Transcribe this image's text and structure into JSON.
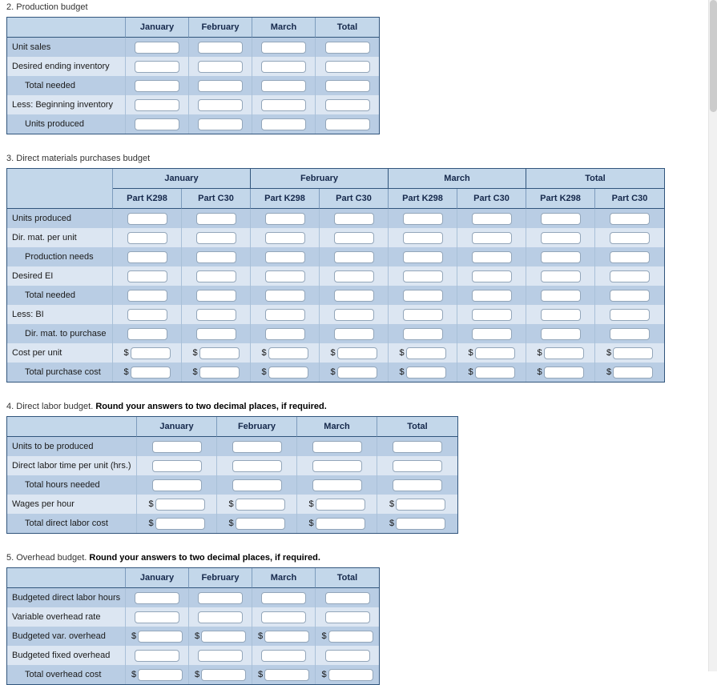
{
  "currency_symbol": "$",
  "sections": [
    {
      "key": "production-budget",
      "number": "2.",
      "title": "Production budget",
      "table": {
        "columns": [
          "January",
          "February",
          "March",
          "Total"
        ],
        "rows": [
          {
            "label": "Unit sales"
          },
          {
            "label": "Desired ending inventory"
          },
          {
            "label": "Total needed",
            "indent": true
          },
          {
            "label": "Less: Beginning inventory"
          },
          {
            "label": "Units produced",
            "indent": true
          }
        ]
      }
    },
    {
      "key": "direct-materials-purchases-budget",
      "number": "3.",
      "title": "Direct materials purchases budget",
      "table": {
        "groups": [
          "January",
          "February",
          "March",
          "Total"
        ],
        "subcolumns": [
          "Part K298",
          "Part C30"
        ],
        "rows": [
          {
            "label": "Units produced"
          },
          {
            "label": "Dir. mat. per unit"
          },
          {
            "label": "Production needs",
            "indent": true
          },
          {
            "label": "Desired EI"
          },
          {
            "label": "Total needed",
            "indent": true
          },
          {
            "label": "Less: BI"
          },
          {
            "label": "Dir. mat. to purchase",
            "indent": true
          },
          {
            "label": "Cost per unit",
            "dollar": true
          },
          {
            "label": "Total purchase cost",
            "indent": true,
            "dollar": true
          }
        ]
      }
    },
    {
      "key": "direct-labor-budget",
      "number": "4.",
      "title": "Direct labor budget.",
      "note": "Round your answers to two decimal places, if required.",
      "table": {
        "columns": [
          "January",
          "February",
          "March",
          "Total"
        ],
        "rows": [
          {
            "label": "Units to be produced"
          },
          {
            "label": "Direct labor time per unit (hrs.)"
          },
          {
            "label": "Total hours needed",
            "indent": true
          },
          {
            "label": "Wages per hour",
            "dollar": true
          },
          {
            "label": "Total direct labor cost",
            "indent": true,
            "dollar": true
          }
        ]
      }
    },
    {
      "key": "overhead-budget",
      "number": "5.",
      "title": "Overhead budget.",
      "note": "Round your answers to two decimal places, if required.",
      "table": {
        "columns": [
          "January",
          "February",
          "March",
          "Total"
        ],
        "rows": [
          {
            "label": "Budgeted direct labor hours"
          },
          {
            "label": "Variable overhead rate"
          },
          {
            "label": "Budgeted var. overhead",
            "dollar": true
          },
          {
            "label": "Budgeted fixed overhead"
          },
          {
            "label": "Total overhead cost",
            "indent": true,
            "dollar": true
          }
        ]
      }
    }
  ]
}
